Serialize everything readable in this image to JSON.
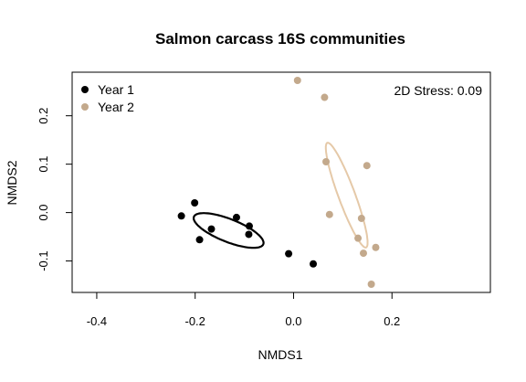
{
  "chart_data": {
    "type": "scatter",
    "title": "Salmon carcass 16S communities",
    "xlabel": "NMDS1",
    "ylabel": "NMDS2",
    "xlim": [
      -0.45,
      0.4
    ],
    "ylim": [
      -0.165,
      0.29
    ],
    "x_ticks": [
      -0.4,
      -0.2,
      0.0,
      0.2
    ],
    "x_tick_labels": [
      "-0.4",
      "-0.2",
      "0.0",
      "0.2"
    ],
    "y_ticks": [
      -0.1,
      0.0,
      0.1,
      0.2
    ],
    "y_tick_labels": [
      "-0.1",
      "0.0",
      "0.1",
      "0.2"
    ],
    "annotation": "2D Stress: 0.09",
    "legend_position": "top-left",
    "series": [
      {
        "name": "Year 1",
        "color": "#000000",
        "points": [
          [
            -0.228,
            -0.007
          ],
          [
            -0.201,
            0.02
          ],
          [
            -0.191,
            -0.056
          ],
          [
            -0.167,
            -0.034
          ],
          [
            -0.116,
            -0.01
          ],
          [
            -0.09,
            -0.028
          ],
          [
            -0.091,
            -0.045
          ],
          [
            -0.01,
            -0.085
          ],
          [
            0.04,
            -0.106
          ]
        ],
        "ellipse": {
          "cx": -0.132,
          "cy": -0.037,
          "rx": 0.076,
          "ry": 0.0235,
          "angle_deg": -22
        }
      },
      {
        "name": "Year 2",
        "color": "#c3a98c",
        "points": [
          [
            0.008,
            0.273
          ],
          [
            0.063,
            0.238
          ],
          [
            0.066,
            0.105
          ],
          [
            0.149,
            0.097
          ],
          [
            0.073,
            -0.004
          ],
          [
            0.138,
            -0.012
          ],
          [
            0.131,
            -0.053
          ],
          [
            0.142,
            -0.084
          ],
          [
            0.167,
            -0.072
          ],
          [
            0.158,
            -0.148
          ]
        ],
        "ellipse": {
          "cx": 0.108,
          "cy": 0.036,
          "rx": 0.115,
          "ry": 0.017,
          "angle_deg": -70,
          "color": "#e5c9a8"
        }
      }
    ]
  }
}
